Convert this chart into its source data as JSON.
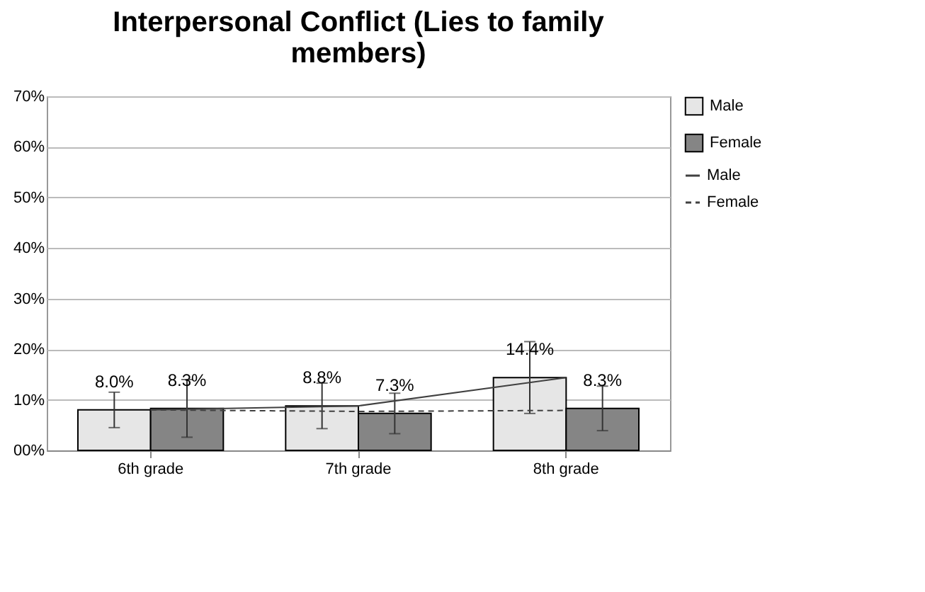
{
  "chart_data": {
    "type": "bar",
    "title": "Interpersonal Conflict (Lies to family members)",
    "categories": [
      "6th grade",
      "7th grade",
      "8th grade"
    ],
    "series": [
      {
        "name": "Male",
        "type": "bar",
        "color": "#e6e6e6",
        "values": [
          8.0,
          8.8,
          14.4
        ],
        "errors": [
          3.5,
          4.5,
          7.1
        ],
        "value_labels": [
          "8.0%",
          "8.8%",
          "14.4%"
        ]
      },
      {
        "name": "Female",
        "type": "bar",
        "color": "#858585",
        "values": [
          8.3,
          7.3,
          8.3
        ],
        "errors": [
          5.7,
          4.0,
          4.4
        ],
        "value_labels": [
          "8.3%",
          "7.3%",
          "8.3%"
        ]
      },
      {
        "name": "Male",
        "type": "line",
        "color": "#404040",
        "line_style": "solid",
        "values": [
          8.0,
          8.8,
          14.4
        ]
      },
      {
        "name": "Female",
        "type": "line",
        "color": "#404040",
        "line_style": "dashed",
        "values": [
          8.0,
          7.7,
          7.9
        ]
      }
    ],
    "ylim": [
      0,
      70
    ],
    "yticks": [
      {
        "value": 0,
        "label": "00%"
      },
      {
        "value": 10,
        "label": "10%"
      },
      {
        "value": 20,
        "label": "20%"
      },
      {
        "value": 30,
        "label": "30%"
      },
      {
        "value": 40,
        "label": "40%"
      },
      {
        "value": 50,
        "label": "50%"
      },
      {
        "value": 60,
        "label": "60%"
      },
      {
        "value": 70,
        "label": "70%"
      }
    ],
    "grid": "y",
    "legend": "right"
  }
}
